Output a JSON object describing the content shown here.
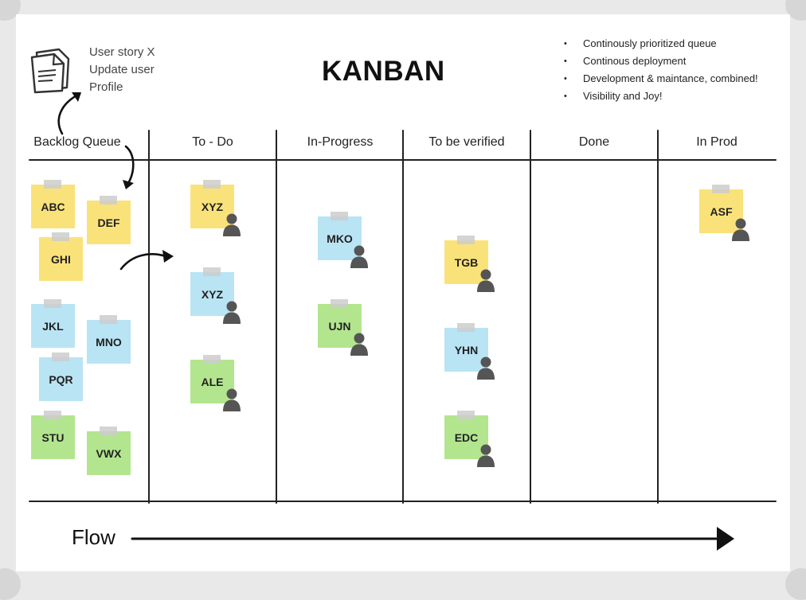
{
  "board": {
    "title": "KANBAN",
    "story_note": {
      "lines": [
        "User story X",
        "Update user",
        "Profile"
      ],
      "icon": "document-stack-icon"
    },
    "bullets": [
      "Continously prioritized queue",
      "Continous deployment",
      "Development & maintance, combined!",
      "Visibility and Joy!"
    ],
    "columns": [
      "Backlog Queue",
      "To - Do",
      "In-Progress",
      "To be verified",
      "Done",
      "In Prod"
    ],
    "cards": [
      {
        "label": "ABC",
        "column": "Backlog Queue",
        "color": "yellow",
        "assignee": false
      },
      {
        "label": "DEF",
        "column": "Backlog Queue",
        "color": "yellow",
        "assignee": false
      },
      {
        "label": "GHI",
        "column": "Backlog Queue",
        "color": "yellow",
        "assignee": false
      },
      {
        "label": "JKL",
        "column": "Backlog Queue",
        "color": "blue",
        "assignee": false
      },
      {
        "label": "MNO",
        "column": "Backlog Queue",
        "color": "blue",
        "assignee": false
      },
      {
        "label": "PQR",
        "column": "Backlog Queue",
        "color": "blue",
        "assignee": false
      },
      {
        "label": "STU",
        "column": "Backlog Queue",
        "color": "green",
        "assignee": false
      },
      {
        "label": "VWX",
        "column": "Backlog Queue",
        "color": "green",
        "assignee": false
      },
      {
        "label": "XYZ",
        "column": "To - Do",
        "color": "yellow",
        "assignee": true
      },
      {
        "label": "XYZ",
        "column": "To - Do",
        "color": "blue",
        "assignee": true
      },
      {
        "label": "ALE",
        "column": "To - Do",
        "color": "green",
        "assignee": true
      },
      {
        "label": "MKO",
        "column": "In-Progress",
        "color": "blue",
        "assignee": true
      },
      {
        "label": "UJN",
        "column": "In-Progress",
        "color": "green",
        "assignee": true
      },
      {
        "label": "TGB",
        "column": "To be verified",
        "color": "yellow",
        "assignee": true
      },
      {
        "label": "YHN",
        "column": "To be verified",
        "color": "blue",
        "assignee": true
      },
      {
        "label": "EDC",
        "column": "To be verified",
        "color": "green",
        "assignee": true
      },
      {
        "label": "ASF",
        "column": "In Prod",
        "color": "yellow",
        "assignee": true
      }
    ],
    "flow_label": "Flow",
    "colors": {
      "yellow": "#fae27a",
      "blue": "#b9e4f4",
      "green": "#b3e58e",
      "ink": "#222222",
      "person": "#555555"
    },
    "icons": {
      "assignee": "person-icon",
      "tape": "tape-strip"
    }
  }
}
